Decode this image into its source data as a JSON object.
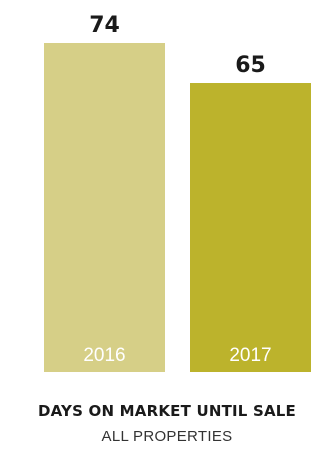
{
  "chart_data": {
    "type": "bar",
    "categories": [
      "2016",
      "2017"
    ],
    "values": [
      74,
      65
    ],
    "colors": [
      "#d6cf87",
      "#bcb32c"
    ],
    "value_label_color": "#1a1a1a",
    "category_label_color": "#ffffff",
    "ylim": [
      0,
      80
    ],
    "grid": false,
    "legend": "none",
    "caption_title": "DAYS ON MARKET UNTIL SALE",
    "caption_subtitle": "ALL PROPERTIES"
  }
}
